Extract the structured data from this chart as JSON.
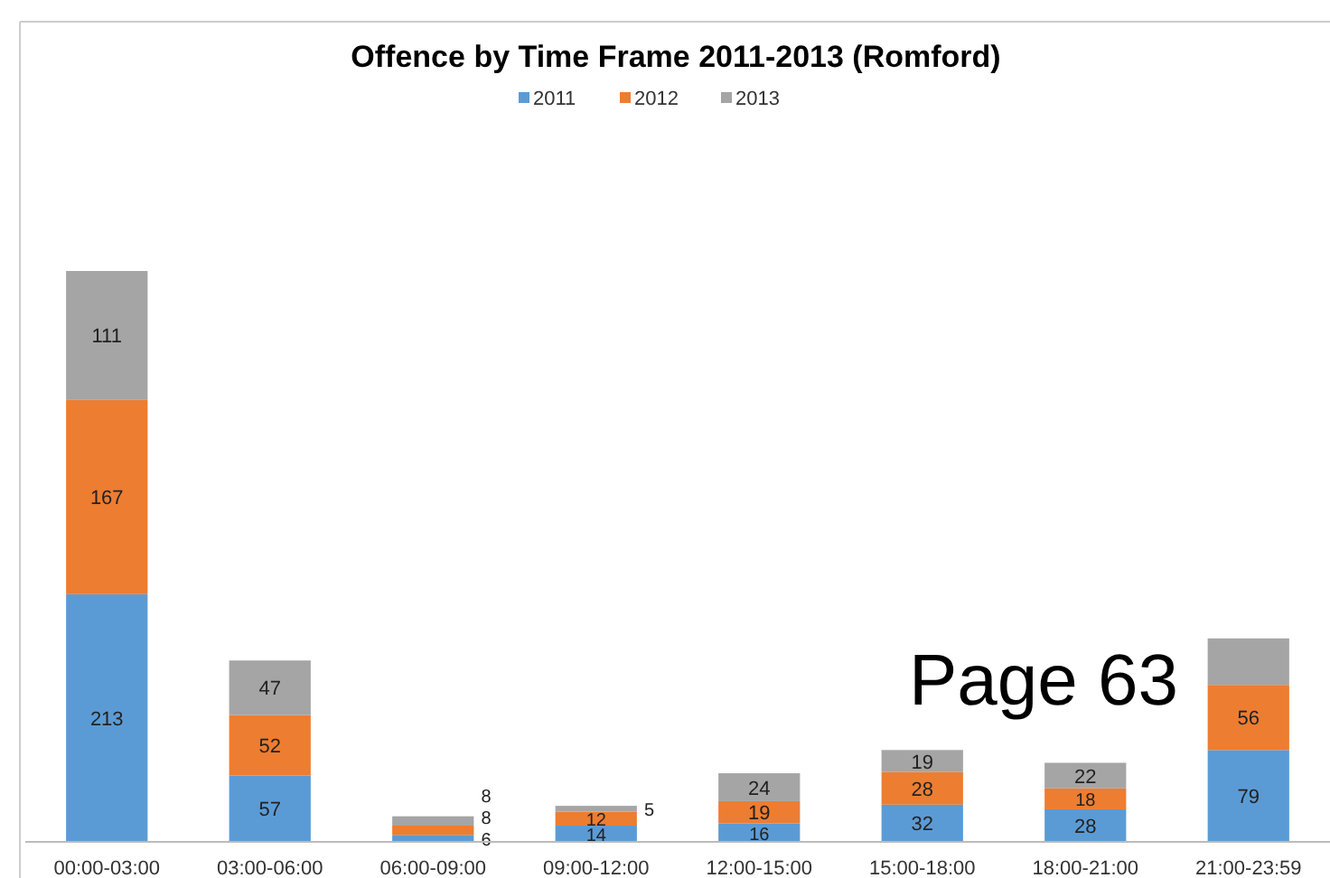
{
  "chart_data": {
    "type": "bar",
    "stacked": true,
    "title": "Offence by Time Frame 2011-2013 (Romford)",
    "legend": "top",
    "categories": [
      "00:00-03:00",
      "03:00-06:00",
      "06:00-09:00",
      "09:00-12:00",
      "12:00-15:00",
      "15:00-18:00",
      "18:00-21:00",
      "21:00-23:59"
    ],
    "series": [
      {
        "name": "2011",
        "color": "#5b9bd5",
        "values": [
          213,
          57,
          6,
          14,
          16,
          32,
          28,
          79
        ],
        "value_labels": [
          "213",
          "57",
          "6",
          "14",
          "16",
          "32",
          "28",
          "79"
        ]
      },
      {
        "name": "2012",
        "color": "#ed7d31",
        "values": [
          167,
          52,
          8,
          12,
          19,
          28,
          18,
          56
        ],
        "value_labels": [
          "167",
          "52",
          "8",
          "12",
          "19",
          "28",
          "18",
          "56"
        ]
      },
      {
        "name": "2013",
        "color": "#a5a5a5",
        "values": [
          111,
          47,
          8,
          5,
          24,
          19,
          22,
          40
        ],
        "value_labels": [
          "111",
          "47",
          "8",
          "5",
          "24",
          "19",
          "22",
          null
        ]
      }
    ],
    "annotations": [
      {
        "text": "Page 63"
      }
    ]
  }
}
